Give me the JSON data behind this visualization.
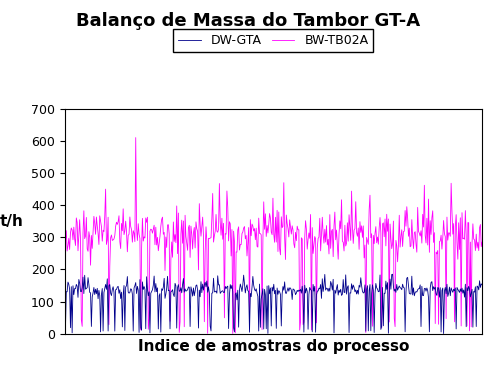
{
  "title": "Balanço de Massa do Tambor GT-A",
  "xlabel": "Indice de amostras do processo",
  "ylabel": "t/h",
  "ylim": [
    0,
    700
  ],
  "yticks": [
    0,
    100,
    200,
    300,
    400,
    500,
    600,
    700
  ],
  "legend_labels": [
    "DW-GTA",
    "BW-TB02A"
  ],
  "dw_color": "#00008B",
  "bw_color": "#FF00FF",
  "n_points": 500,
  "dw_base": 137,
  "dw_std": 12,
  "bw_base": 310,
  "bw_std": 30,
  "background_color": "#ffffff",
  "title_fontsize": 13,
  "label_fontsize": 11,
  "tick_fontsize": 9
}
